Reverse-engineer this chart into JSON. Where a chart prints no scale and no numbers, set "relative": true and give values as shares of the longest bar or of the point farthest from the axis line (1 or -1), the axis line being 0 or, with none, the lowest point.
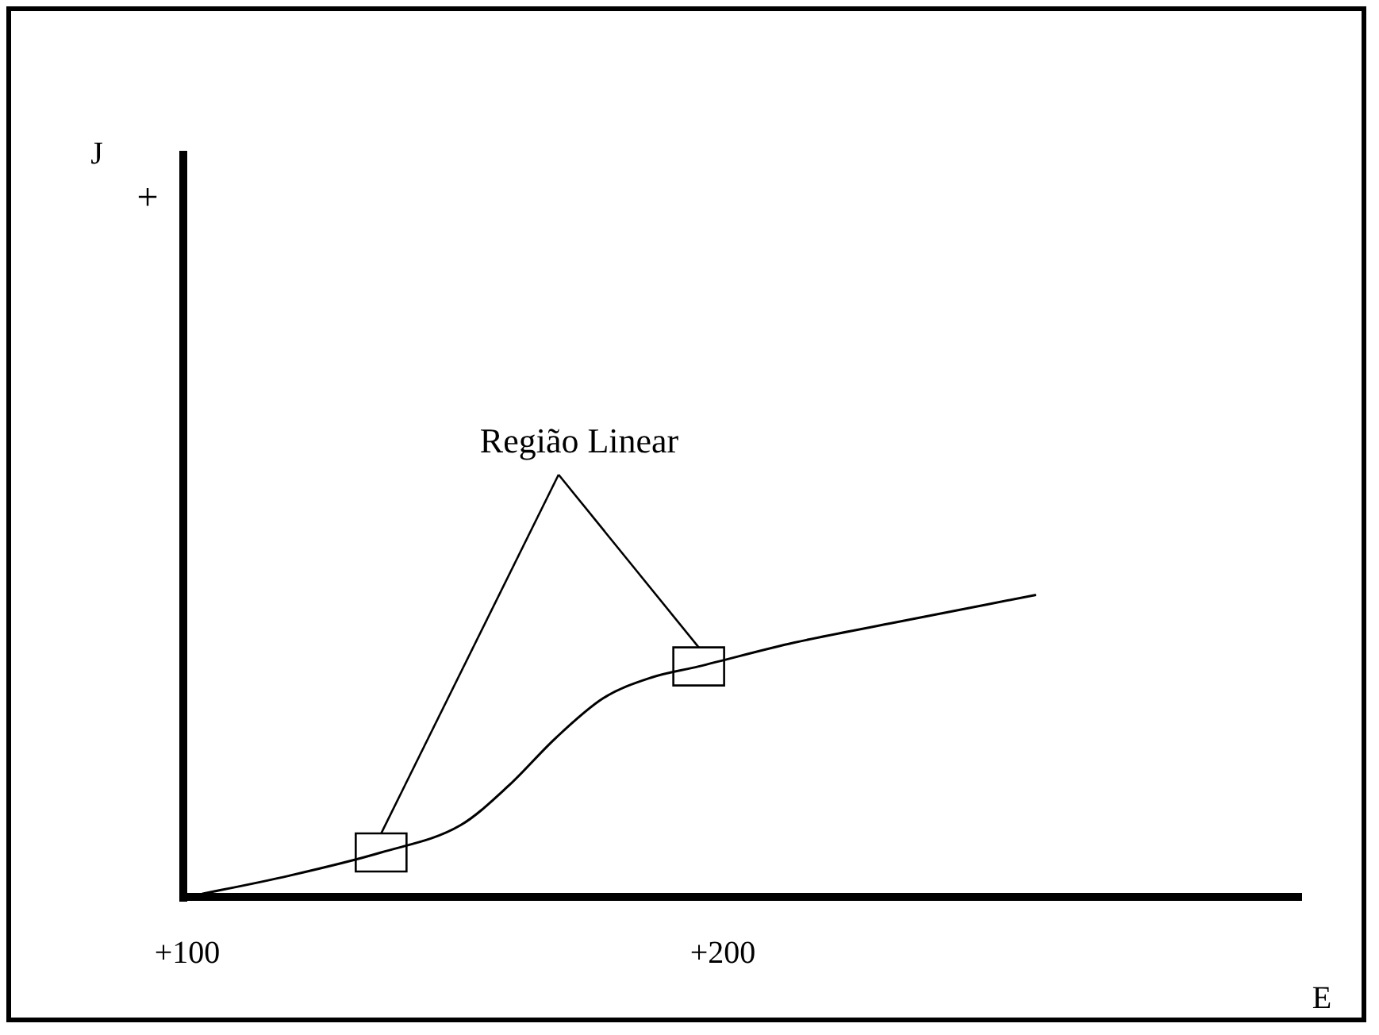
{
  "chart_data": {
    "type": "line",
    "xlabel": "E",
    "relative": true,
    "annotations": [
      "Região Linear",
      "+",
      "J"
    ],
    "xlim": [
      100,
      308
    ],
    "xticks": [
      {
        "value": 100,
        "label": "+100"
      },
      {
        "value": 200,
        "label": "+200"
      }
    ],
    "grid": false,
    "legend": false,
    "marker": "none",
    "line_style": "solid",
    "series": [
      {
        "color": "#000000",
        "x": [
          100,
          119,
          136.2,
          151,
          160,
          168.8,
          177.7,
          186.6,
          195.5,
          213.4,
          231.2,
          258.5
        ],
        "values": [
          0,
          0.07,
          0.147,
          0.237,
          0.368,
          0.526,
          0.658,
          0.726,
          0.763,
          0.842,
          0.905,
          1.0
        ]
      }
    ]
  }
}
